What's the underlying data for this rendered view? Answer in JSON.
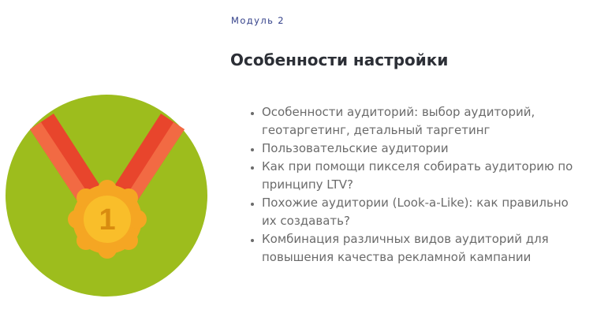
{
  "module": {
    "label": "Модуль 2"
  },
  "section": {
    "title": "Особенности настройки"
  },
  "topics": [
    "Особенности аудиторий: выбор аудиторий, геотаргетинг, детальный таргетинг",
    "Пользовательские аудитории",
    "Как при помощи пикселя собирать аудиторию по принципу LTV?",
    " Похожие аудитории (Look-a-Like): как правильно их создавать?",
    "Комбинация различных видов аудиторий для повышения качества рекламной кампании"
  ],
  "illustration": {
    "medal_number": "1",
    "colors": {
      "circle": "#9dbd1d",
      "ribbon": "#e8452c",
      "ribbon_stripe": "#f26a43",
      "medal_outer": "#f5a623",
      "medal_inner": "#f9be2a",
      "number": "#d98c10"
    }
  }
}
